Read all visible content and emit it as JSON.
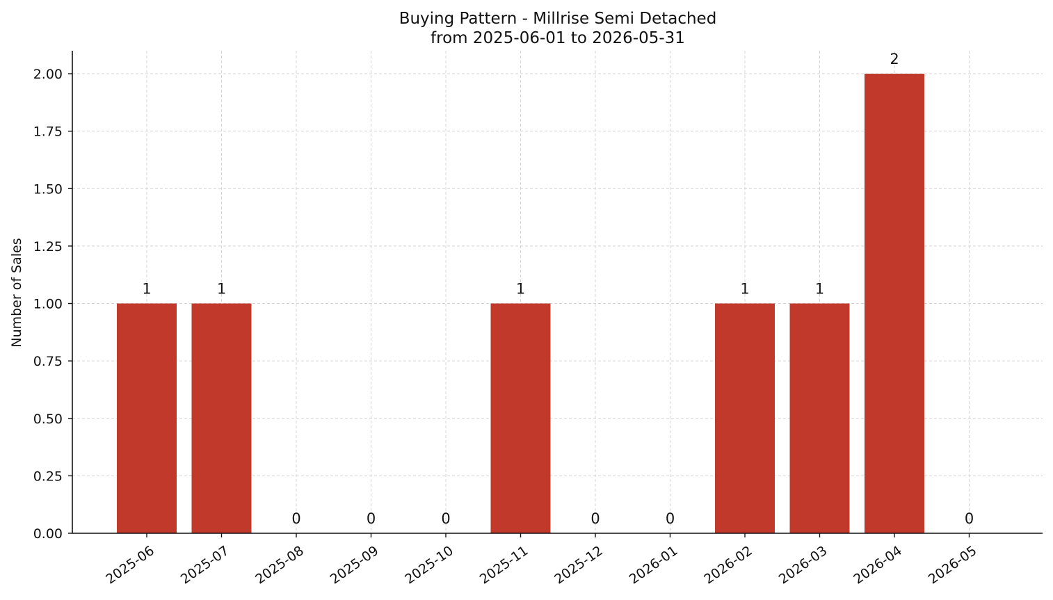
{
  "chart_data": {
    "type": "bar",
    "title": "Buying Pattern - Millrise Semi Detached",
    "subtitle": "from 2025-06-01 to 2026-05-31",
    "xlabel": "",
    "ylabel": "Number of Sales",
    "categories": [
      "2025-06",
      "2025-07",
      "2025-08",
      "2025-09",
      "2025-10",
      "2025-11",
      "2025-12",
      "2026-01",
      "2026-02",
      "2026-03",
      "2026-04",
      "2026-05"
    ],
    "values": [
      1,
      1,
      0,
      0,
      0,
      1,
      0,
      0,
      1,
      1,
      2,
      0
    ],
    "data_labels": [
      "1",
      "1",
      "0",
      "0",
      "0",
      "1",
      "0",
      "0",
      "1",
      "1",
      "2",
      "0"
    ],
    "ylim": [
      0,
      2.1
    ],
    "yticks": [
      0,
      0.25,
      0.5,
      0.75,
      1.0,
      1.25,
      1.5,
      1.75,
      2.0
    ],
    "ytick_labels": [
      "0.00",
      "0.25",
      "0.50",
      "0.75",
      "1.00",
      "1.25",
      "1.50",
      "1.75",
      "2.00"
    ],
    "grid": true,
    "bar_color": "#c0392b",
    "grid_color": "#d4d4d4"
  }
}
